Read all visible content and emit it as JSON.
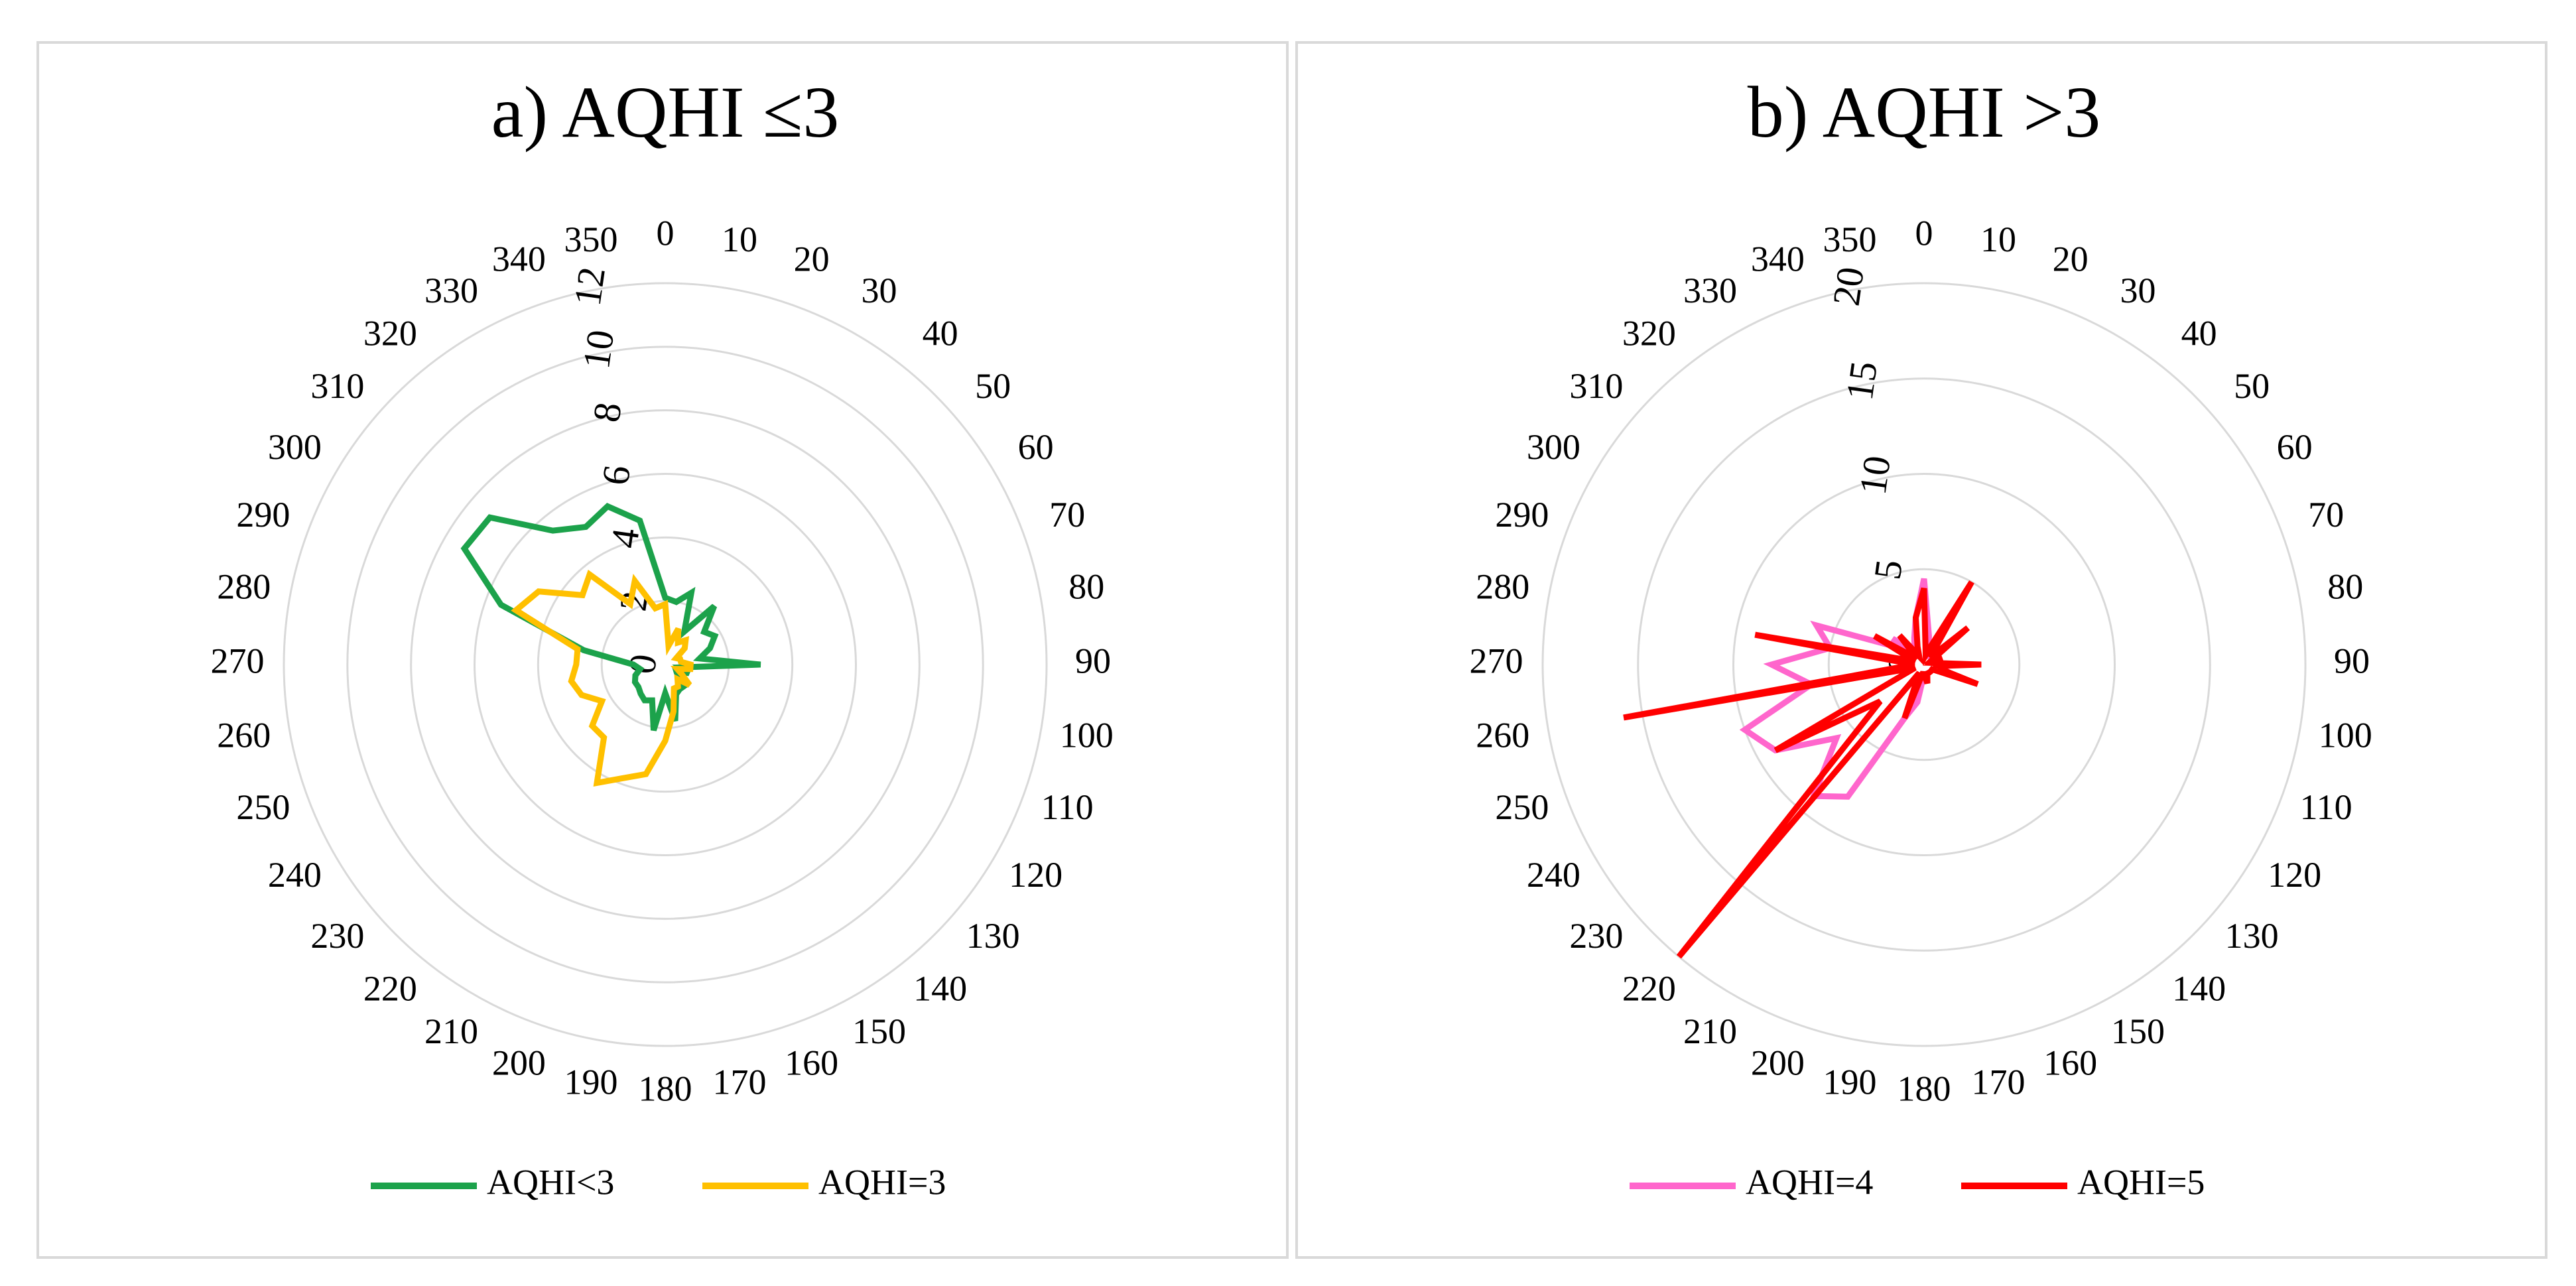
{
  "chart_data": [
    {
      "type": "radar",
      "title": "a) AQHI ≤3",
      "directions": [
        0,
        10,
        20,
        30,
        40,
        50,
        60,
        70,
        80,
        90,
        100,
        110,
        120,
        130,
        140,
        150,
        160,
        170,
        180,
        190,
        200,
        210,
        220,
        230,
        240,
        250,
        260,
        270,
        280,
        290,
        300,
        310,
        320,
        330,
        340,
        350
      ],
      "radial_ticks": [
        0,
        2,
        4,
        6,
        8,
        10,
        12
      ],
      "rmax": 12,
      "legend_position": "bottom",
      "series": [
        {
          "name": "AQHI<3",
          "color": "#1ca24b",
          "values": [
            2.1,
            2.0,
            2.4,
            1.2,
            2.4,
            1.6,
            1.8,
            1.5,
            1.1,
            3.0,
            0.5,
            0.8,
            0.4,
            0.5,
            0.9,
            0.9,
            1.0,
            1.8,
            0.9,
            2.1,
            1.2,
            1.3,
            1.2,
            1.1,
            1.1,
            1.0,
            0.8,
            1.0,
            2.6,
            5.5,
            7.3,
            7.2,
            5.5,
            5.0,
            5.3,
            4.6
          ]
        },
        {
          "name": "AQHI=3",
          "color": "#ffc000",
          "values": [
            1.9,
            0.6,
            1.2,
            0.8,
            1.0,
            0.8,
            0.4,
            0.5,
            0.5,
            0.8,
            0.8,
            0.4,
            0.6,
            1.0,
            0.6,
            0.8,
            0.8,
            1.5,
            2.4,
            3.5,
            3.8,
            4.3,
            3.0,
            3.0,
            2.3,
            2.8,
            3.0,
            2.8,
            2.8,
            5.0,
            4.6,
            3.4,
            3.7,
            2.2,
            2.8,
            1.8
          ]
        }
      ]
    },
    {
      "type": "radar",
      "title": "b) AQHI >3",
      "directions": [
        0,
        10,
        20,
        30,
        40,
        50,
        60,
        70,
        80,
        90,
        100,
        110,
        120,
        130,
        140,
        150,
        160,
        170,
        180,
        190,
        200,
        210,
        220,
        230,
        240,
        250,
        260,
        270,
        280,
        290,
        300,
        310,
        320,
        330,
        340,
        350
      ],
      "radial_ticks": [
        0,
        5,
        10,
        15,
        20
      ],
      "rmax": 20,
      "legend_position": "bottom",
      "series": [
        {
          "name": "AQHI=4",
          "color": "#ff66cc",
          "values": [
            4.5,
            1.5,
            0.5,
            0.5,
            0.5,
            0.5,
            0.5,
            0.5,
            0.5,
            1.0,
            1.0,
            1.5,
            0.5,
            0.5,
            0.5,
            0.5,
            0.5,
            0.5,
            0.5,
            2.0,
            3.0,
            8.0,
            9.0,
            6.0,
            9.0,
            10.0,
            6.0,
            8.0,
            5.0,
            6.0,
            2.0,
            2.0,
            1.0,
            1.0,
            1.5,
            2.5
          ]
        },
        {
          "name": "AQHI=5",
          "color": "#ff0000",
          "values": [
            4.0,
            0.5,
            1.0,
            5.0,
            0.5,
            3.0,
            0.5,
            1.0,
            0.5,
            3.0,
            0.5,
            3.0,
            0.5,
            0.5,
            0.5,
            0.5,
            0.5,
            1.0,
            0.5,
            0.5,
            3.0,
            0.5,
            20.0,
            3.0,
            9.0,
            0.5,
            16.0,
            0.5,
            9.0,
            0.5,
            3.0,
            0.5,
            2.0,
            0.5,
            1.0,
            2.5
          ]
        }
      ]
    }
  ]
}
